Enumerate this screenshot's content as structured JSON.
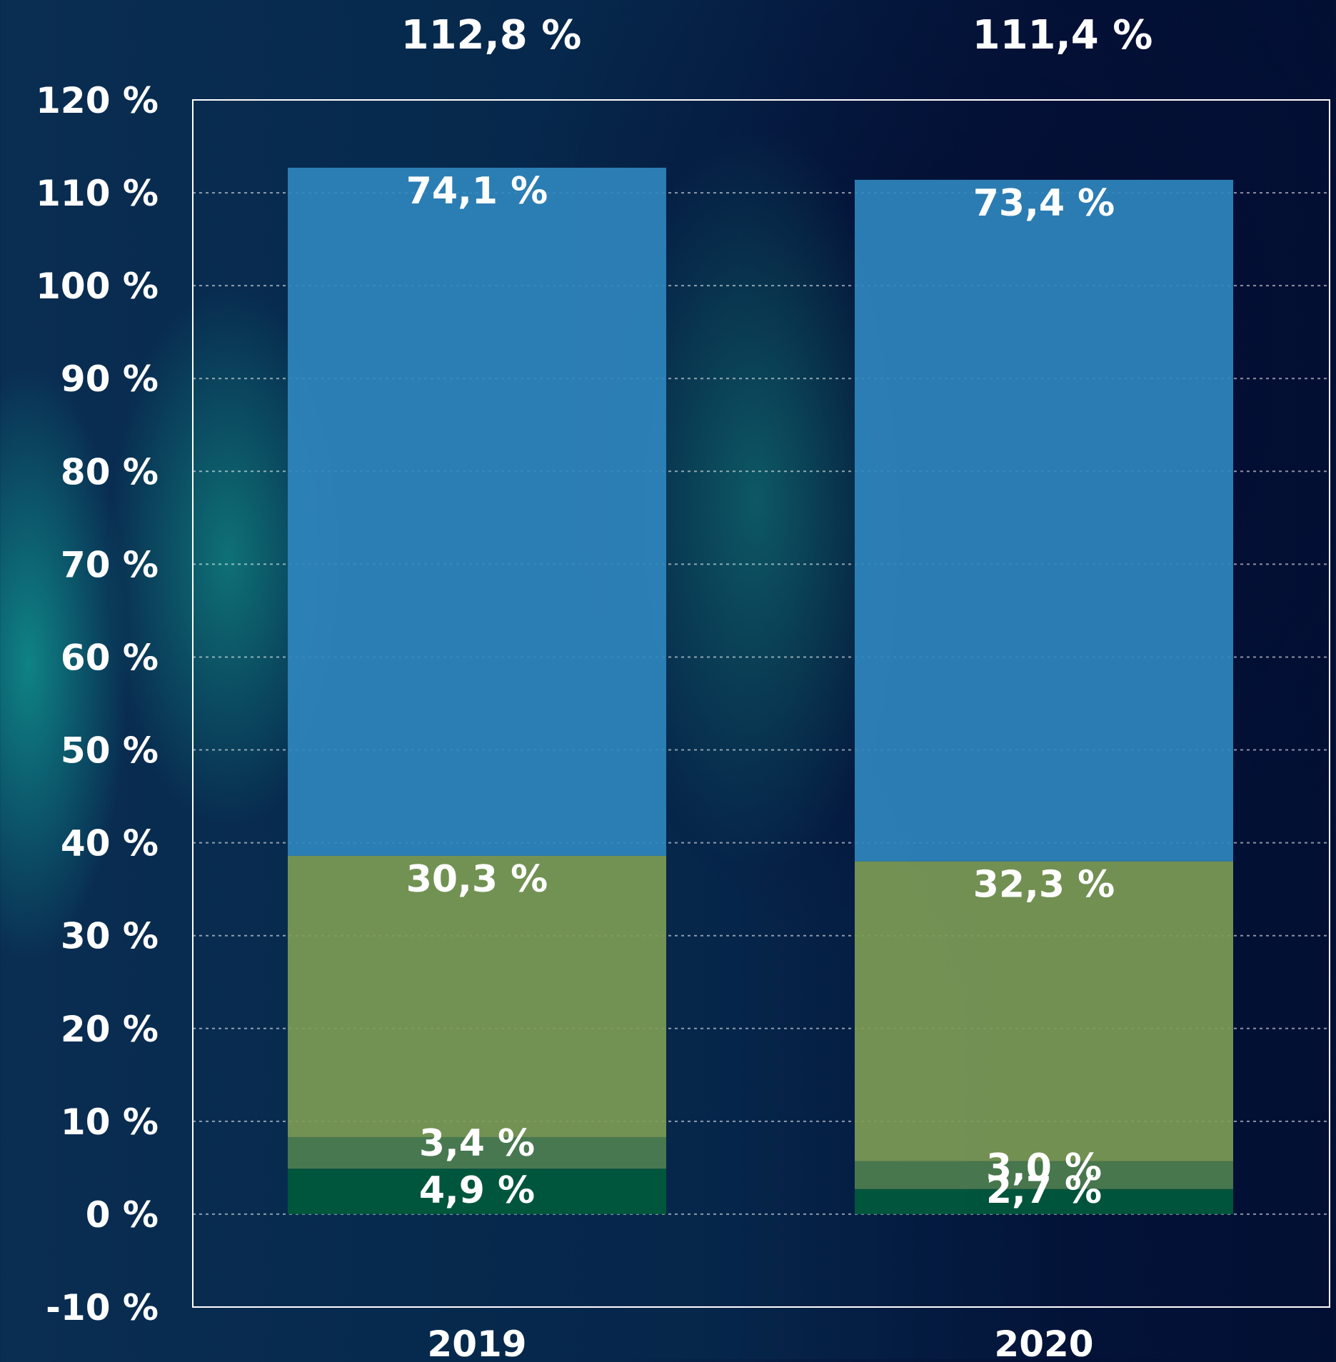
{
  "chart_data": {
    "type": "bar",
    "stacked": true,
    "categories": [
      "2019",
      "2020"
    ],
    "totals": [
      "112,8 %",
      "111,4 %"
    ],
    "ylim": [
      -10,
      120
    ],
    "yticks": [
      "-10 %",
      "0 %",
      "10 %",
      "20 %",
      "30 %",
      "40 %",
      "50 %",
      "60 %",
      "70 %",
      "80 %",
      "90 %",
      "100 %",
      "110 %",
      "120 %"
    ],
    "ytick_values": [
      -10,
      0,
      10,
      20,
      30,
      40,
      50,
      60,
      70,
      80,
      90,
      100,
      110,
      120
    ],
    "grid": true,
    "legend": "none",
    "series": [
      {
        "values": [
          4.9,
          2.7
        ],
        "labels": [
          "4,9 %",
          "2,7 %"
        ],
        "color": "#005a3c"
      },
      {
        "values": [
          3.4,
          3.0
        ],
        "labels": [
          "3,4 %",
          "3,0 %"
        ],
        "color": "#4e7f4f"
      },
      {
        "values": [
          30.3,
          32.3
        ],
        "labels": [
          "30,3 %",
          "32,3 %"
        ],
        "color": "#7c9b55"
      },
      {
        "values": [
          74.1,
          73.4
        ],
        "labels": [
          "74,1 %",
          "73,4 %"
        ],
        "color": "#2f86bd"
      }
    ]
  }
}
